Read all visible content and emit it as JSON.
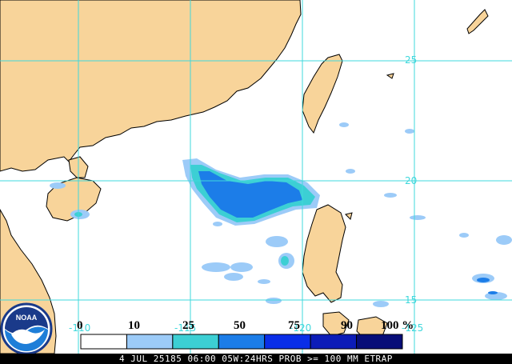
{
  "footer_text": "4 JUL 25185 06:00 05W:24HRS PROB >= 100 MM ETRAP",
  "logo_text": "NOAA",
  "lat_labels": [
    "25",
    "20",
    "15"
  ],
  "lon_labels": [
    "-110",
    "-115",
    "-120",
    "-125"
  ],
  "legend": {
    "labels": [
      "0",
      "10",
      "25",
      "50",
      "75",
      "90",
      "100 %"
    ],
    "colors": [
      "#ffffff",
      "#9ccbf8",
      "#3ccfd4",
      "#1c7de8",
      "#0a2ee8",
      "#0c1cb8",
      "#070d78"
    ]
  },
  "colors": {
    "land": "#f8d49a",
    "coast": "#000000",
    "grid": "#3fd8dc",
    "water": "#ffffff"
  }
}
